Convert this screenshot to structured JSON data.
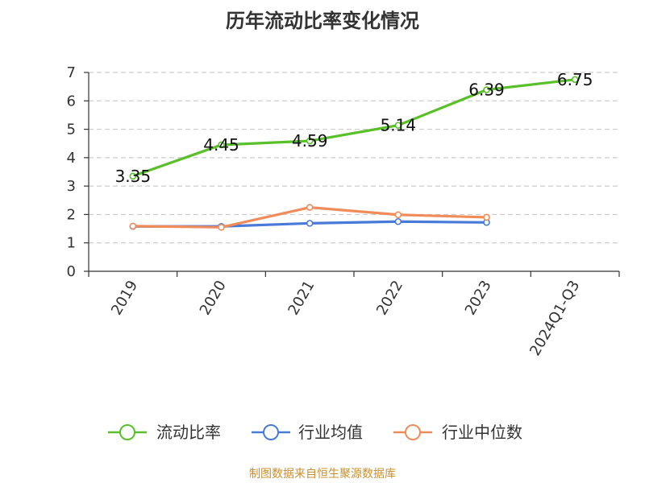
{
  "title": "历年流动比率变化情况",
  "source": "制图数据来自恒生聚源数据库",
  "chart_data": {
    "type": "line",
    "title": "历年流动比率变化情况",
    "categories": [
      "2019",
      "2020",
      "2021",
      "2022",
      "2023",
      "2024Q1-Q3"
    ],
    "ylim": [
      0,
      7
    ],
    "yticks": [
      0,
      1,
      2,
      3,
      4,
      5,
      6,
      7
    ],
    "grid": true,
    "legend_position": "bottom",
    "series": [
      {
        "name": "流动比率",
        "color": "#5ac02a",
        "values": [
          3.35,
          4.45,
          4.59,
          5.14,
          6.39,
          6.75
        ],
        "labels": [
          "3.35",
          "4.45",
          "4.59",
          "5.14",
          "6.39",
          "6.75"
        ]
      },
      {
        "name": "行业均值",
        "color": "#4a7ad9",
        "values": [
          1.58,
          1.58,
          1.69,
          1.75,
          1.72,
          null
        ]
      },
      {
        "name": "行业中位数",
        "color": "#f08c5a",
        "values": [
          1.59,
          1.55,
          2.25,
          1.99,
          1.9,
          null
        ]
      }
    ]
  }
}
